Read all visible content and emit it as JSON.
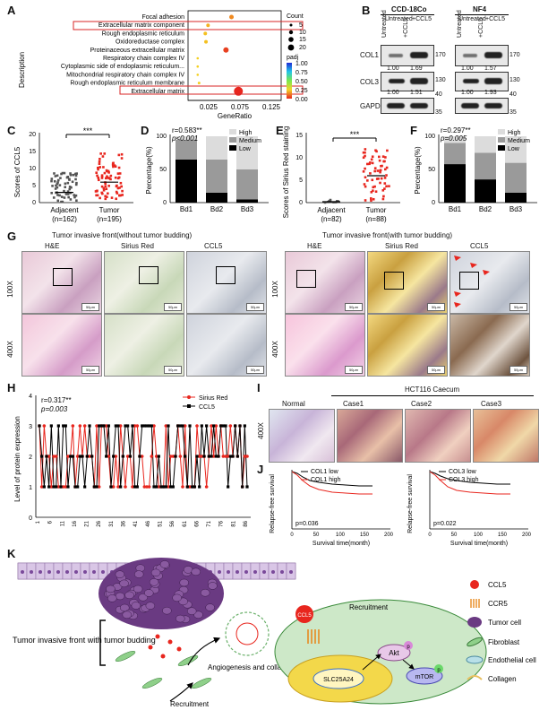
{
  "panels": {
    "A": "A",
    "B": "B",
    "C": "C",
    "D": "D",
    "E": "E",
    "F": "F",
    "G": "G",
    "H": "H",
    "I": "I",
    "J": "J",
    "K": "K"
  },
  "A": {
    "terms": [
      "Focal adhesion",
      "Extracellular matrix component",
      "Rough endoplasmic reticulum",
      "Oxidoreductase complex",
      "Proteinaceous extracellular matrix",
      "Respiratory chain complex IV",
      "Cytoplasmic side of endoplasmic reticulum...",
      "Mitochondrial respiratory chain complex IV",
      "Rough endoplasmic reticulum membrane",
      "Extracellular matrix"
    ],
    "ylabel": "Description",
    "xlabel": "GeneRatio",
    "xticks": [
      "0.025",
      "0.075",
      "0.125"
    ],
    "count_title": "Count",
    "count_vals": [
      "5",
      "10",
      "15",
      "20"
    ],
    "padj_title": "padj",
    "padj_vals": [
      "1.00",
      "0.75",
      "0.50",
      "0.25",
      "0.00"
    ]
  },
  "B": {
    "lines": [
      "CCD-18Co",
      "NF4"
    ],
    "conds": [
      "Untreated",
      "+CCL5",
      "Untreated",
      "+CCL5"
    ],
    "rows": [
      {
        "name": "COL1",
        "vals": [
          "1.00",
          "1.69",
          "1.00",
          "1.57"
        ],
        "mw": "170"
      },
      {
        "name": "COL3",
        "vals": [
          "1.00",
          "1.51",
          "1.00",
          "1.93"
        ],
        "mw": "130"
      },
      {
        "name": "GAPDH",
        "vals": [],
        "mw": "35"
      }
    ],
    "mw_extra": [
      "40",
      "40"
    ]
  },
  "C": {
    "ylabel": "Scores of CCL5",
    "yticks": [
      "0",
      "5",
      "10",
      "15",
      "20"
    ],
    "groups": [
      "Adjacent",
      "Tumor"
    ],
    "ns": [
      "(n=162)",
      "(n=195)"
    ],
    "sig": "***"
  },
  "D": {
    "r": "r=0.583**",
    "p": "p<0.001",
    "ylabel": "Percentage(%)",
    "yticks": [
      "0",
      "50",
      "100"
    ],
    "cats": [
      "Bd1",
      "Bd2",
      "Bd3"
    ],
    "legend": [
      "High",
      "Medium",
      "Low"
    ],
    "chart_data": {
      "type": "bar",
      "categories": [
        "Bd1",
        "Bd2",
        "Bd3"
      ],
      "series": [
        {
          "name": "Low",
          "values": [
            65,
            15,
            5
          ]
        },
        {
          "name": "Medium",
          "values": [
            30,
            50,
            45
          ]
        },
        {
          "name": "High",
          "values": [
            5,
            35,
            50
          ]
        }
      ],
      "ylim": [
        0,
        100
      ]
    }
  },
  "E": {
    "ylabel": "Scores of Sirius Red staining",
    "yticks": [
      "0",
      "5",
      "10",
      "15"
    ],
    "groups": [
      "Adjacent",
      "Tumor"
    ],
    "ns": [
      "(n=82)",
      "(n=88)"
    ],
    "sig": "***"
  },
  "F": {
    "r": "r=0.297**",
    "p": "p=0.005",
    "ylabel": "Percentage(%)",
    "yticks": [
      "0",
      "50",
      "100"
    ],
    "cats": [
      "Bd1",
      "Bd2",
      "Bd3"
    ],
    "legend": [
      "High",
      "Medium",
      "Low"
    ],
    "chart_data": {
      "type": "bar",
      "categories": [
        "Bd1",
        "Bd2",
        "Bd3"
      ],
      "series": [
        {
          "name": "Low",
          "values": [
            58,
            35,
            15
          ]
        },
        {
          "name": "Medium",
          "values": [
            32,
            40,
            45
          ]
        },
        {
          "name": "High",
          "values": [
            10,
            25,
            40
          ]
        }
      ],
      "ylim": [
        0,
        100
      ]
    }
  },
  "G": {
    "left_title": "Tumor invasive front(without tumor budding)",
    "right_title": "Tumor invasive front(with tumor budding)",
    "cols": [
      "H&E",
      "Sirius Red",
      "CCL5"
    ],
    "rows": [
      "100X",
      "400X"
    ],
    "scale_small": "50μm"
  },
  "H": {
    "r": "r=0.317**",
    "p": "p=0.003",
    "ylabel": "Level of protein expression",
    "yticks": [
      "0",
      "1",
      "2",
      "3",
      "4"
    ],
    "xticks": [
      "1",
      "6",
      "11",
      "16",
      "21",
      "26",
      "31",
      "36",
      "41",
      "46",
      "51",
      "56",
      "61",
      "66",
      "71",
      "76",
      "81",
      "86"
    ],
    "legend": [
      "Sirius Red",
      "CCL5"
    ]
  },
  "I": {
    "header": "HCT116 Caecum",
    "cols": [
      "Normal",
      "Case1",
      "Case2",
      "Case3"
    ],
    "row": "400X"
  },
  "J": {
    "left": {
      "legend": [
        "COL1 low",
        "COL1 high"
      ],
      "p": "p=0.036"
    },
    "right": {
      "legend": [
        "COL3 low",
        "COL3 high"
      ],
      "p": "p=0.022"
    },
    "ylabel": "Relapse-free survival",
    "xlabel": "Survival time(month)",
    "xticks": [
      "0",
      "50",
      "100",
      "150",
      "200"
    ]
  },
  "K": {
    "front": "Tumor invasive front with tumor budding",
    "angio": "Angiogenesis and collagen synthesis",
    "recruit": "Recruitment",
    "recruit2": "Recruitment",
    "ccl5": "CCL5",
    "slc": "SLC25A24",
    "akt": "Akt",
    "mtor": "mTOR",
    "p": "p",
    "legend": [
      "CCL5",
      "CCR5",
      "Tumor cell",
      "Fibroblast",
      "Endothelial cell",
      "Collagen"
    ]
  }
}
